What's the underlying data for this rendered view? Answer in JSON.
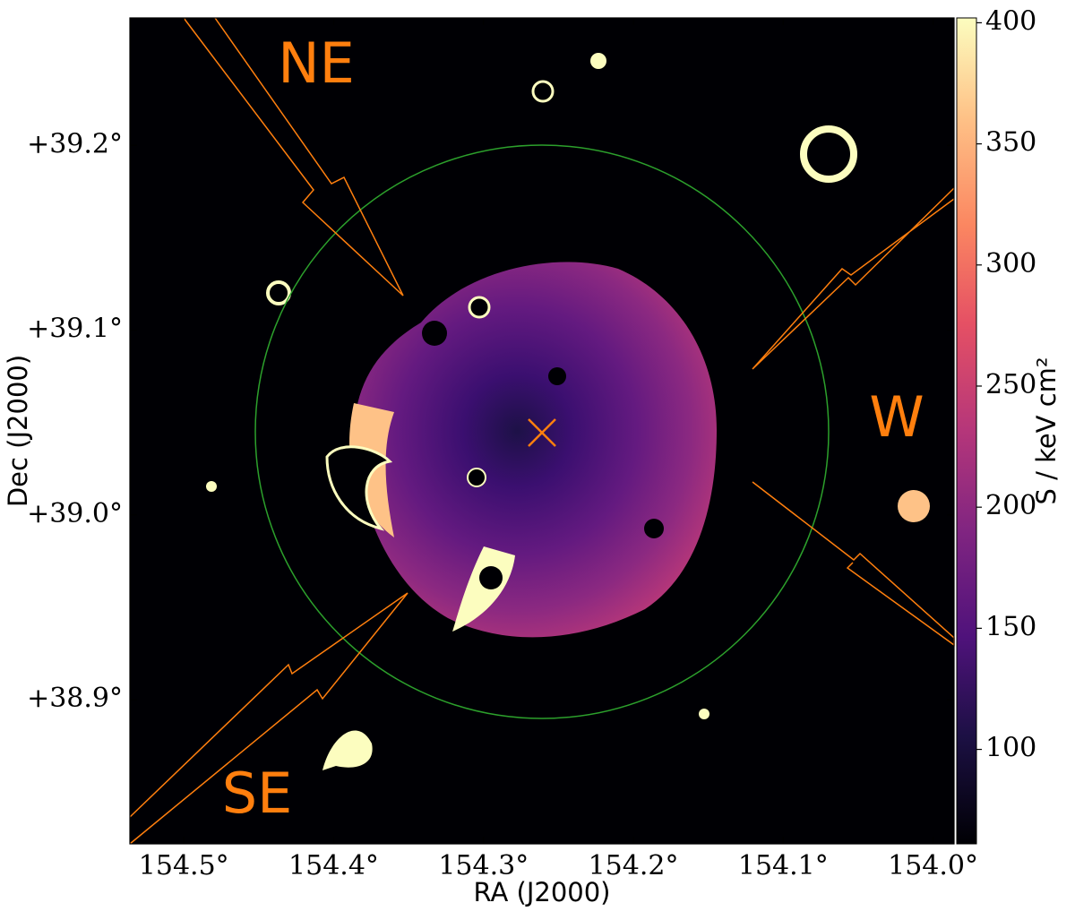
{
  "chart_data": {
    "type": "image",
    "xlabel": "RA (J2000)",
    "ylabel": "Dec (J2000)",
    "colorbar_label": "S / keV cm²",
    "xlim": [
      154.536,
      153.986
    ],
    "xticks": [
      {
        "value": 154.5,
        "label": "154.5°"
      },
      {
        "value": 154.4,
        "label": "154.4°"
      },
      {
        "value": 154.3,
        "label": "154.3°"
      },
      {
        "value": 154.2,
        "label": "154.2°"
      },
      {
        "value": 154.1,
        "label": "154.1°"
      },
      {
        "value": 154.0,
        "label": "154.0°"
      }
    ],
    "ylim": [
      38.822,
      39.269
    ],
    "yticks": [
      {
        "value": 38.9,
        "label": "+38.9°"
      },
      {
        "value": 39.0,
        "label": "+39.0°"
      },
      {
        "value": 39.1,
        "label": "+39.1°"
      },
      {
        "value": 39.2,
        "label": "+39.2°"
      }
    ],
    "clim": [
      61,
      402
    ],
    "cticks": [
      100,
      150,
      200,
      250,
      300,
      350,
      400
    ],
    "colormap": "magma",
    "annotations": [
      "NE",
      "SE",
      "W"
    ]
  }
}
